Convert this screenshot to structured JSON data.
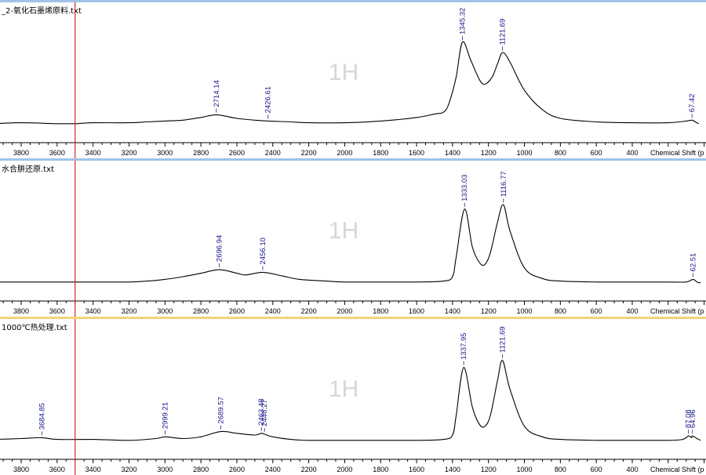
{
  "colors": {
    "panel_border_top": "#9fc3e8",
    "panel_border_active": "#f3d37a",
    "spectrum": "#000000",
    "peak_label": "#1a1a8c",
    "cursor": "#e02020",
    "watermark": "#d6d6d6"
  },
  "cursor_x_value": 3500,
  "axis_title": "Chemical Shift (p",
  "chart_data": [
    {
      "type": "line",
      "title": "_2-氧化石墨烯原料.txt",
      "watermark": "1H",
      "xlabel": "Chemical Shift (p",
      "xlim": [
        3950,
        0
      ],
      "xticks": [
        3800,
        3600,
        3400,
        3200,
        3000,
        2800,
        2600,
        2400,
        2200,
        2000,
        1800,
        1600,
        1400,
        1200,
        1000,
        800,
        600,
        400
      ],
      "xtick_labels": [
        "3800",
        "3600",
        "3400",
        "3200",
        "3000",
        "2800",
        "2600",
        "2400",
        "2200",
        "2000",
        "1800",
        "1600",
        "1400",
        "1200",
        "1000",
        "800",
        "600",
        "400"
      ],
      "ylim": [
        0,
        1
      ],
      "series": [
        {
          "x": [
            3950,
            3800,
            3600,
            3500,
            3400,
            3200,
            3100,
            3000,
            2900,
            2800,
            2714,
            2600,
            2500,
            2426,
            2300,
            2200,
            2000,
            1800,
            1600,
            1500,
            1450,
            1420,
            1380,
            1345,
            1300,
            1250,
            1220,
            1180,
            1150,
            1121,
            1080,
            1000,
            900,
            800,
            600,
            400,
            200,
            100,
            67,
            50,
            30
          ],
          "y": [
            0.02,
            0.03,
            0.02,
            0.02,
            0.03,
            0.03,
            0.04,
            0.05,
            0.06,
            0.09,
            0.12,
            0.08,
            0.06,
            0.05,
            0.04,
            0.03,
            0.03,
            0.05,
            0.09,
            0.13,
            0.15,
            0.25,
            0.55,
            0.95,
            0.75,
            0.52,
            0.47,
            0.55,
            0.7,
            0.83,
            0.72,
            0.4,
            0.18,
            0.08,
            0.04,
            0.03,
            0.03,
            0.05,
            0.06,
            0.04,
            0.02
          ]
        }
      ],
      "annotations": [
        {
          "x": 2714.14,
          "label": "2714.14"
        },
        {
          "x": 2426.61,
          "label": "2426.61"
        },
        {
          "x": 1345.32,
          "label": "1345.32"
        },
        {
          "x": 1121.69,
          "label": "1121.69"
        },
        {
          "x": 67.42,
          "label": "67.42"
        }
      ]
    },
    {
      "type": "line",
      "title": "水合肼还原.txt",
      "watermark": "1H",
      "xlabel": "Chemical Shift (p",
      "xlim": [
        3950,
        0
      ],
      "xticks": [
        3800,
        3600,
        3400,
        3200,
        3000,
        2800,
        2600,
        2400,
        2200,
        2000,
        1800,
        1600,
        1400,
        1200,
        1000,
        800,
        600,
        400
      ],
      "xtick_labels": [
        "3800",
        "3600",
        "3400",
        "3200",
        "3000",
        "2800",
        "2600",
        "2400",
        "2200",
        "2000",
        "1800",
        "1600",
        "1400",
        "1200",
        "1000",
        "800",
        "600",
        "400"
      ],
      "ylim": [
        0,
        1
      ],
      "series": [
        {
          "x": [
            3950,
            3800,
            3600,
            3400,
            3200,
            3100,
            3000,
            2900,
            2800,
            2697,
            2600,
            2550,
            2456,
            2350,
            2250,
            2100,
            2000,
            1800,
            1600,
            1450,
            1400,
            1380,
            1333,
            1290,
            1250,
            1220,
            1190,
            1150,
            1117,
            1080,
            1000,
            900,
            800,
            600,
            400,
            200,
            100,
            62,
            40,
            20
          ],
          "y": [
            0.02,
            0.02,
            0.02,
            0.02,
            0.02,
            0.03,
            0.05,
            0.08,
            0.12,
            0.16,
            0.12,
            0.1,
            0.13,
            0.09,
            0.05,
            0.03,
            0.02,
            0.02,
            0.02,
            0.03,
            0.08,
            0.3,
            0.85,
            0.42,
            0.24,
            0.22,
            0.35,
            0.7,
            0.9,
            0.6,
            0.18,
            0.06,
            0.03,
            0.02,
            0.02,
            0.02,
            0.02,
            0.05,
            0.02,
            0.01
          ]
        }
      ],
      "annotations": [
        {
          "x": 2696.94,
          "label": "2696.94"
        },
        {
          "x": 2456.1,
          "label": "2456.10"
        },
        {
          "x": 1333.03,
          "label": "1333.03"
        },
        {
          "x": 1116.77,
          "label": "1116.77"
        },
        {
          "x": 62.51,
          "label": "62.51"
        }
      ]
    },
    {
      "type": "line",
      "title": "1000℃热处理.txt",
      "watermark": "1H",
      "xlabel": "Chemical Shift (p",
      "xlim": [
        3950,
        0
      ],
      "xticks": [
        3800,
        3600,
        3400,
        3200,
        3000,
        2800,
        2600,
        2400,
        2200,
        2000,
        1800,
        1600,
        1400,
        1200,
        1000,
        800,
        600,
        400
      ],
      "xtick_labels": [
        "3800",
        "3600",
        "3400",
        "3200",
        "3000",
        "2800",
        "2600",
        "2400",
        "2200",
        "2000",
        "1800",
        "1600",
        "1400",
        "1200",
        "1000",
        "800",
        "600",
        "400"
      ],
      "ylim": [
        0,
        1
      ],
      "series": [
        {
          "x": [
            3950,
            3800,
            3685,
            3600,
            3400,
            3200,
            3050,
            2999,
            2900,
            2800,
            2690,
            2600,
            2500,
            2463,
            2446,
            2400,
            2300,
            2200,
            2000,
            1800,
            1600,
            1450,
            1400,
            1380,
            1338,
            1290,
            1250,
            1220,
            1190,
            1150,
            1122,
            1080,
            1000,
            900,
            800,
            600,
            400,
            200,
            120,
            87,
            70,
            65,
            40,
            20
          ],
          "y": [
            0.03,
            0.04,
            0.05,
            0.03,
            0.03,
            0.02,
            0.04,
            0.06,
            0.04,
            0.06,
            0.12,
            0.1,
            0.08,
            0.1,
            0.09,
            0.06,
            0.03,
            0.02,
            0.02,
            0.02,
            0.02,
            0.03,
            0.08,
            0.3,
            0.85,
            0.4,
            0.2,
            0.18,
            0.3,
            0.7,
            0.93,
            0.6,
            0.18,
            0.06,
            0.03,
            0.02,
            0.02,
            0.02,
            0.03,
            0.07,
            0.05,
            0.07,
            0.04,
            0.02
          ]
        }
      ],
      "annotations": [
        {
          "x": 3684.85,
          "label": "3684.85"
        },
        {
          "x": 2999.21,
          "label": "2999.21"
        },
        {
          "x": 2689.57,
          "label": "2689.57"
        },
        {
          "x": 2463.48,
          "label": "2463.48"
        },
        {
          "x": 2446.27,
          "label": "2446.27"
        },
        {
          "x": 1337.95,
          "label": "1337.95"
        },
        {
          "x": 1121.69,
          "label": "1121.69"
        },
        {
          "x": 87.08,
          "label": "87.08"
        },
        {
          "x": 64.96,
          "label": "64.96"
        }
      ]
    }
  ]
}
